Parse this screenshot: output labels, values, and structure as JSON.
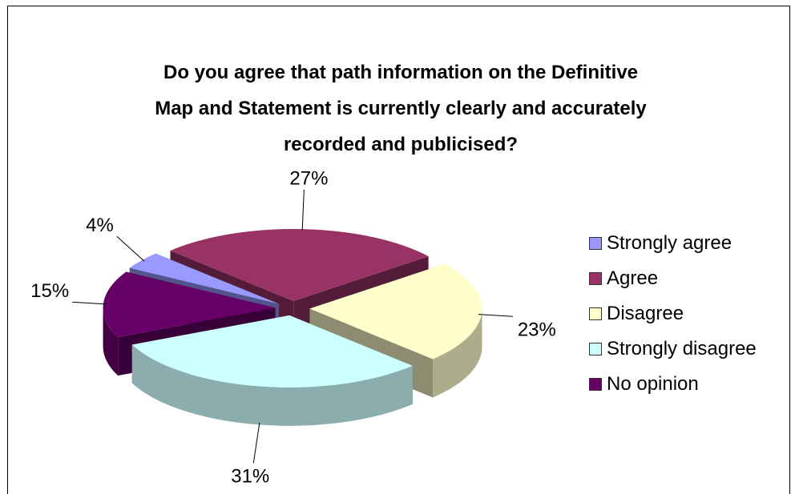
{
  "chart_data": {
    "type": "pie",
    "title": "Do you agree that path information on the Definitive Map and Statement is currently clearly and accurately recorded and publicised?",
    "title_lines": [
      "Do you agree that path information on the Definitive",
      "Map and Statement is currently clearly and accurately",
      "recorded and publicised?"
    ],
    "legend_position": "right",
    "slices": [
      {
        "name": "Strongly agree",
        "value": 4,
        "label": "4%",
        "color": "#9999ff"
      },
      {
        "name": "Agree",
        "value": 27,
        "label": "27%",
        "color": "#993366"
      },
      {
        "name": "Disagree",
        "value": 23,
        "label": "23%",
        "color": "#ffffcc"
      },
      {
        "name": "Strongly disagree",
        "value": 31,
        "label": "31%",
        "color": "#ccffff"
      },
      {
        "name": "No opinion",
        "value": 15,
        "label": "15%",
        "color": "#660066"
      }
    ]
  }
}
